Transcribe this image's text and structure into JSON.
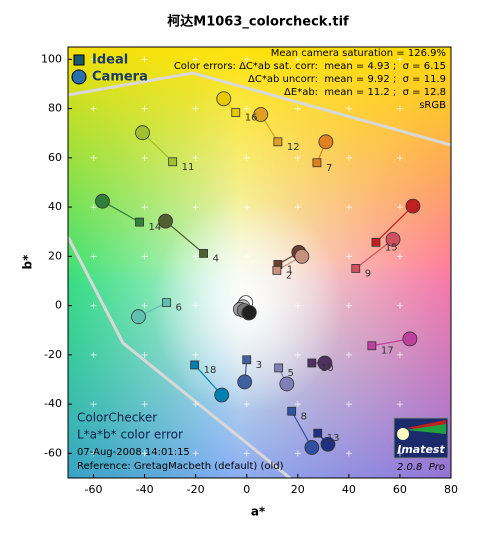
{
  "chart_data": {
    "type": "scatter",
    "title": "柯达M1063_colorcheck.tif",
    "x_label": "a*",
    "y_label": "b*",
    "xlim": [
      -70,
      80
    ],
    "ylim": [
      -70,
      105
    ],
    "xticks": [
      -60,
      -40,
      -20,
      0,
      20,
      40,
      60,
      80
    ],
    "yticks": [
      -60,
      -40,
      -20,
      0,
      20,
      40,
      60,
      80,
      100
    ],
    "grid": true,
    "labels": [
      "1",
      "2",
      "3",
      "4",
      "5",
      "6",
      "7",
      "8",
      "9",
      "10",
      "11",
      "12",
      "13",
      "14",
      "15",
      "16",
      "17",
      "18",
      null,
      null,
      null,
      null,
      null,
      null
    ],
    "point_colors": [
      "#6b4030",
      "#c89080",
      "#4060a0",
      "#506030",
      "#8080b8",
      "#60c0b0",
      "#e08020",
      "#3050a0",
      "#d05060",
      "#503060",
      "#a0c030",
      "#e0a020",
      "#203080",
      "#30803a",
      "#c02020",
      "#e8c800",
      "#c040a0",
      "#0080b0",
      "#f8f8f8",
      "#c8c8c8",
      "#a0a0a0",
      "#787878",
      "#505050",
      "#202020"
    ],
    "series": [
      {
        "name": "Ideal",
        "color": "#1a5a70",
        "marker": "square",
        "x": [
          12.2,
          11.8,
          0,
          -16.9,
          12.5,
          -31.4,
          27.5,
          17.6,
          42.7,
          25.5,
          -29,
          12.2,
          27.8,
          -42,
          50.6,
          -4.3,
          49,
          -20.4,
          -0.5,
          -0.8,
          -0.3,
          0,
          -0.5,
          0.3
        ],
        "values": [
          16.7,
          14.3,
          -22,
          21.2,
          -25.3,
          1.2,
          58,
          -42.9,
          15.1,
          -23.3,
          58.4,
          66.5,
          -51.8,
          33.9,
          25.7,
          78.4,
          -16.3,
          -24.1,
          0.5,
          -0.5,
          -1,
          -0.3,
          -0.8,
          -0.5
        ]
      },
      {
        "name": "Camera",
        "color": "#2a6fb0",
        "marker": "circle",
        "x": [
          20.4,
          21.6,
          -0.8,
          -31.8,
          15.7,
          -42.4,
          31,
          25.5,
          57.3,
          30.6,
          -40.8,
          5.5,
          31.8,
          -56.5,
          65.1,
          -9,
          63.9,
          -9.8,
          -0.4,
          -1.5,
          -2.5,
          -1,
          0.8,
          1
        ],
        "values": [
          21.6,
          20,
          -31,
          34.3,
          -31.8,
          -4.5,
          66.5,
          -57.6,
          26.9,
          -23.3,
          70.2,
          77.6,
          -56.3,
          42.4,
          40.4,
          84,
          -13.5,
          -36.3,
          1.2,
          -0.5,
          -1.5,
          -2,
          -3,
          -2.8
        ]
      }
    ],
    "stats": [
      "Mean camera saturation = 126.9%",
      "Color errors: ΔC*ab sat. corr:  mean = 4.93 ;  σ = 6.15",
      "ΔC*ab uncorr:  mean = 9.92 ;  σ = 11.9",
      "ΔE*ab:  mean = 11.2 ;  σ = 12.8",
      "sRGB"
    ],
    "notes": [
      "ColorChecker",
      "L*a*b* color error",
      "07-Aug-2008 14:01:15",
      "Reference: GretagMacbeth (default) (old)"
    ],
    "logo": {
      "name": "Imatest",
      "version": "2.0.8  Pro"
    }
  }
}
